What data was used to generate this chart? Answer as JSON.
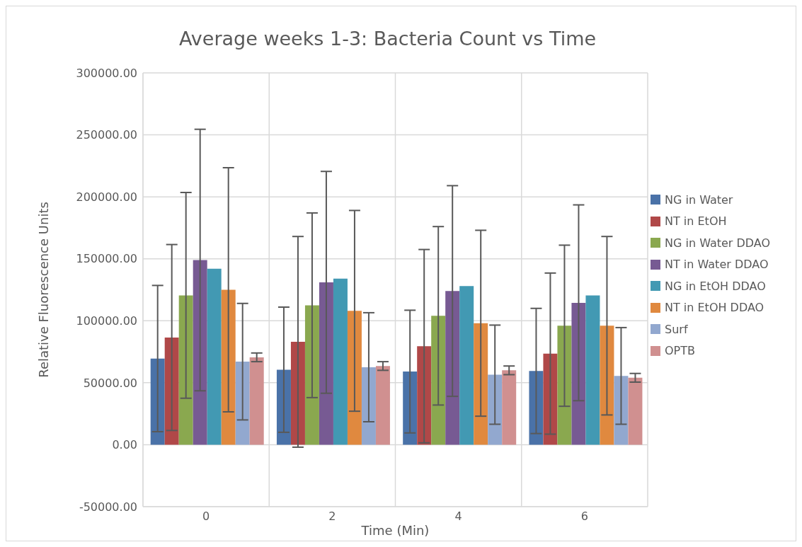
{
  "chart_data": {
    "type": "bar",
    "title": "Average weeks 1-3: Bacteria Count vs Time",
    "xlabel": "Time (Min)",
    "ylabel": "Relative Fluorescence Units",
    "categories": [
      "0",
      "2",
      "4",
      "6"
    ],
    "series": [
      {
        "name": "NG in Water",
        "color": "#4a72a8",
        "values": [
          69500,
          60500,
          59000,
          59500
        ],
        "errors": [
          59000,
          50500,
          49500,
          50500
        ]
      },
      {
        "name": "NT in EtOH",
        "color": "#b04848",
        "values": [
          86500,
          83000,
          79500,
          73500
        ],
        "errors": [
          75000,
          85000,
          78000,
          65000
        ]
      },
      {
        "name": "NG in Water DDAO",
        "color": "#8aa84f",
        "values": [
          120500,
          112500,
          104000,
          96000
        ],
        "errors": [
          83000,
          74500,
          72000,
          65000
        ]
      },
      {
        "name": "NT in Water DDAO",
        "color": "#775a93",
        "values": [
          149000,
          131000,
          124000,
          114500
        ],
        "errors": [
          105500,
          89500,
          85000,
          79000
        ]
      },
      {
        "name": "NG in EtOH DDAO",
        "color": "#4299b3",
        "values": [
          142000,
          134000,
          128000,
          120500
        ],
        "errors": [
          0,
          0,
          0,
          0
        ]
      },
      {
        "name": "NT in EtOH DDAO",
        "color": "#e0893f",
        "values": [
          125000,
          108000,
          98000,
          96000
        ],
        "errors": [
          98500,
          81000,
          75000,
          72000
        ]
      },
      {
        "name": "Surf",
        "color": "#92a8cf",
        "values": [
          67000,
          62500,
          56500,
          55500
        ],
        "errors": [
          47000,
          44000,
          40000,
          39000
        ]
      },
      {
        "name": "OPTB",
        "color": "#d09090",
        "values": [
          70500,
          63500,
          60000,
          54000
        ],
        "errors": [
          3500,
          3500,
          3500,
          3500
        ]
      }
    ],
    "ylim": [
      -50000,
      300000
    ],
    "yticks": [
      {
        "value": -50000,
        "label": "-50000.00"
      },
      {
        "value": 0,
        "label": "0.00"
      },
      {
        "value": 50000,
        "label": "50000.00"
      },
      {
        "value": 100000,
        "label": "100000.00"
      },
      {
        "value": 150000,
        "label": "150000.00"
      },
      {
        "value": 200000,
        "label": "200000.00"
      },
      {
        "value": 250000,
        "label": "250000.00"
      },
      {
        "value": 300000,
        "label": "300000.00"
      }
    ],
    "grid": true,
    "legend": "right"
  }
}
